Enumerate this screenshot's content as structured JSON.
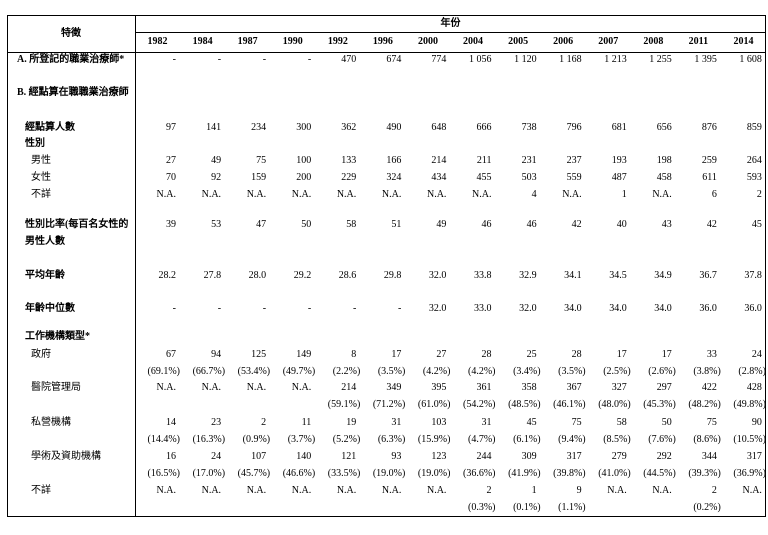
{
  "table": {
    "header": {
      "feature": "特徵",
      "years_title": "年份",
      "years": [
        "1982",
        "1984",
        "1987",
        "1990",
        "1992",
        "1996",
        "2000",
        "2004",
        "2005",
        "2006",
        "2007",
        "2008",
        "2011",
        "2014"
      ]
    },
    "rows": [
      {
        "label": "A. 所登記的職業治療師*",
        "values": [
          "-",
          "-",
          "-",
          "-",
          "470",
          "674",
          "774",
          "1 056",
          "1 120",
          "1 168",
          "1 213",
          "1 255",
          "1 395",
          "1 608"
        ]
      },
      {
        "label": "B. 經點算在職職業治療師"
      },
      {
        "label": "經點算人數",
        "values": [
          "97",
          "141",
          "234",
          "300",
          "362",
          "490",
          "648",
          "666",
          "738",
          "796",
          "681",
          "656",
          "876",
          "859"
        ]
      },
      {
        "label": "性別"
      },
      {
        "label": "男性",
        "values": [
          "27",
          "49",
          "75",
          "100",
          "133",
          "166",
          "214",
          "211",
          "231",
          "237",
          "193",
          "198",
          "259",
          "264"
        ]
      },
      {
        "label": "女性",
        "values": [
          "70",
          "92",
          "159",
          "200",
          "229",
          "324",
          "434",
          "455",
          "503",
          "559",
          "487",
          "458",
          "611",
          "593"
        ]
      },
      {
        "label": "不詳",
        "values": [
          "N.A.",
          "N.A.",
          "N.A.",
          "N.A.",
          "N.A.",
          "N.A.",
          "N.A.",
          "N.A.",
          "4",
          "N.A.",
          "1",
          "N.A.",
          "6",
          "2"
        ]
      },
      {
        "label": [
          "性別比率(每百名女性的",
          "男性人數"
        ],
        "values": [
          "39",
          "53",
          "47",
          "50",
          "58",
          "51",
          "49",
          "46",
          "46",
          "42",
          "40",
          "43",
          "42",
          "45"
        ]
      },
      {
        "label": "平均年齡",
        "values": [
          "28.2",
          "27.8",
          "28.0",
          "29.2",
          "28.6",
          "29.8",
          "32.0",
          "33.8",
          "32.9",
          "34.1",
          "34.5",
          "34.9",
          "36.7",
          "37.8"
        ]
      },
      {
        "label": "年齡中位數",
        "values": [
          "-",
          "-",
          "-",
          "-",
          "-",
          "-",
          "32.0",
          "33.0",
          "32.0",
          "34.0",
          "34.0",
          "34.0",
          "36.0",
          "36.0"
        ]
      },
      {
        "label": "工作機構類型*"
      },
      {
        "label": "政府",
        "values": [
          "67",
          "94",
          "125",
          "149",
          "8",
          "17",
          "27",
          "28",
          "25",
          "28",
          "17",
          "17",
          "33",
          "24"
        ],
        "pct": [
          "(69.1%)",
          "(66.7%)",
          "(53.4%)",
          "(49.7%)",
          "(2.2%)",
          "(3.5%)",
          "(4.2%)",
          "(4.2%)",
          "(3.4%)",
          "(3.5%)",
          "(2.5%)",
          "(2.6%)",
          "(3.8%)",
          "(2.8%)"
        ]
      },
      {
        "label": "醫院管理局",
        "values": [
          "N.A.",
          "N.A.",
          "N.A.",
          "N.A.",
          "214",
          "349",
          "395",
          "361",
          "358",
          "367",
          "327",
          "297",
          "422",
          "428"
        ],
        "pct": [
          null,
          null,
          null,
          null,
          "(59.1%)",
          "(71.2%)",
          "(61.0%)",
          "(54.2%)",
          "(48.5%)",
          "(46.1%)",
          "(48.0%)",
          "(45.3%)",
          "(48.2%)",
          "(49.8%)"
        ]
      },
      {
        "label": "私營機構",
        "values": [
          "14",
          "23",
          "2",
          "11",
          "19",
          "31",
          "103",
          "31",
          "45",
          "75",
          "58",
          "50",
          "75",
          "90"
        ],
        "pct": [
          "(14.4%)",
          "(16.3%)",
          "(0.9%)",
          "(3.7%)",
          "(5.2%)",
          "(6.3%)",
          "(15.9%)",
          "(4.7%)",
          "(6.1%)",
          "(9.4%)",
          "(8.5%)",
          "(7.6%)",
          "(8.6%)",
          "(10.5%)"
        ]
      },
      {
        "label": "學術及資助機構",
        "values": [
          "16",
          "24",
          "107",
          "140",
          "121",
          "93",
          "123",
          "244",
          "309",
          "317",
          "279",
          "292",
          "344",
          "317"
        ],
        "pct": [
          "(16.5%)",
          "(17.0%)",
          "(45.7%)",
          "(46.6%)",
          "(33.5%)",
          "(19.0%)",
          "(19.0%)",
          "(36.6%)",
          "(41.9%)",
          "(39.8%)",
          "(41.0%)",
          "(44.5%)",
          "(39.3%)",
          "(36.9%)"
        ]
      },
      {
        "label": "不詳",
        "values": [
          "N.A.",
          "N.A.",
          "N.A.",
          "N.A.",
          "N.A.",
          "N.A.",
          "N.A.",
          "2",
          "1",
          "9",
          "N.A.",
          "N.A.",
          "2",
          "N.A."
        ],
        "pct": [
          null,
          null,
          null,
          null,
          null,
          null,
          null,
          "(0.3%)",
          "(0.1%)",
          "(1.1%)",
          null,
          null,
          "(0.2%)",
          null
        ]
      }
    ]
  }
}
